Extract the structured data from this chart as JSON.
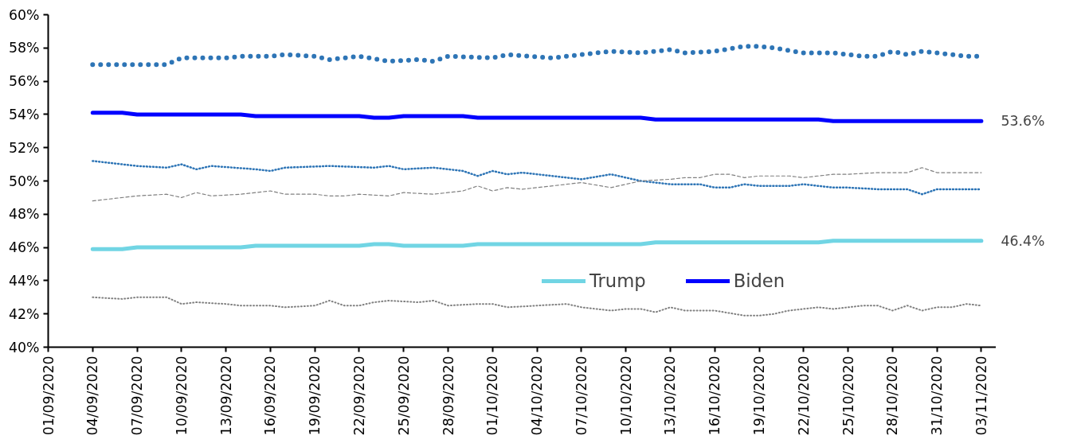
{
  "chart_data": {
    "type": "line",
    "legend": "right",
    "grid": false,
    "ylim": [
      40,
      60
    ],
    "yticks": [
      {
        "value": 40,
        "label": "40%"
      },
      {
        "value": 42,
        "label": "42%"
      },
      {
        "value": 44,
        "label": "44%"
      },
      {
        "value": 46,
        "label": "46%"
      },
      {
        "value": 48,
        "label": "48%"
      },
      {
        "value": 50,
        "label": "50%"
      },
      {
        "value": 52,
        "label": "52%"
      },
      {
        "value": 54,
        "label": "54%"
      },
      {
        "value": 56,
        "label": "56%"
      },
      {
        "value": 58,
        "label": "58%"
      },
      {
        "value": 60,
        "label": "60%"
      }
    ],
    "xlim": [
      "2020-09-01",
      "2020-11-04"
    ],
    "xticks": [
      {
        "value": "2020-09-01",
        "label": "01/09/2020"
      },
      {
        "value": "2020-09-04",
        "label": "04/09/2020"
      },
      {
        "value": "2020-09-07",
        "label": "07/09/2020"
      },
      {
        "value": "2020-09-10",
        "label": "10/09/2020"
      },
      {
        "value": "2020-09-13",
        "label": "13/09/2020"
      },
      {
        "value": "2020-09-16",
        "label": "16/09/2020"
      },
      {
        "value": "2020-09-19",
        "label": "19/09/2020"
      },
      {
        "value": "2020-09-22",
        "label": "22/09/2020"
      },
      {
        "value": "2020-09-25",
        "label": "25/09/2020"
      },
      {
        "value": "2020-09-28",
        "label": "28/09/2020"
      },
      {
        "value": "2020-10-01",
        "label": "01/10/2020"
      },
      {
        "value": "2020-10-04",
        "label": "04/10/2020"
      },
      {
        "value": "2020-10-07",
        "label": "07/10/2020"
      },
      {
        "value": "2020-10-10",
        "label": "10/10/2020"
      },
      {
        "value": "2020-10-13",
        "label": "13/10/2020"
      },
      {
        "value": "2020-10-16",
        "label": "16/10/2020"
      },
      {
        "value": "2020-10-19",
        "label": "19/10/2020"
      },
      {
        "value": "2020-10-22",
        "label": "22/10/2020"
      },
      {
        "value": "2020-10-25",
        "label": "25/10/2020"
      },
      {
        "value": "2020-10-28",
        "label": "28/10/2020"
      },
      {
        "value": "2020-10-31",
        "label": "31/10/2020"
      },
      {
        "value": "2020-11-03",
        "label": "03/11/2020"
      }
    ],
    "annotations": [
      {
        "text": "53.6%",
        "x": "2020-11-03",
        "y": 53.6
      },
      {
        "text": "46.4%",
        "x": "2020-11-03",
        "y": 46.4
      }
    ],
    "series": [
      {
        "color": "#2e75b6",
        "line_style": "dotted",
        "x": [
          "2020-09-04",
          "2020-09-07",
          "2020-09-09",
          "2020-09-10",
          "2020-09-13",
          "2020-09-14",
          "2020-09-16",
          "2020-09-17",
          "2020-09-19",
          "2020-09-20",
          "2020-09-22",
          "2020-09-24",
          "2020-09-26",
          "2020-09-27",
          "2020-09-28",
          "2020-10-01",
          "2020-10-02",
          "2020-10-05",
          "2020-10-07",
          "2020-10-09",
          "2020-10-11",
          "2020-10-13",
          "2020-10-14",
          "2020-10-16",
          "2020-10-18",
          "2020-10-19",
          "2020-10-20",
          "2020-10-22",
          "2020-10-24",
          "2020-10-26",
          "2020-10-27",
          "2020-10-28",
          "2020-10-29",
          "2020-10-30",
          "2020-10-31",
          "2020-11-02",
          "2020-11-03"
        ],
        "values": [
          57.0,
          57.0,
          57.0,
          57.4,
          57.4,
          57.5,
          57.5,
          57.6,
          57.5,
          57.3,
          57.5,
          57.2,
          57.3,
          57.2,
          57.5,
          57.4,
          57.6,
          57.4,
          57.6,
          57.8,
          57.7,
          57.9,
          57.7,
          57.8,
          58.1,
          58.1,
          58.0,
          57.7,
          57.7,
          57.5,
          57.5,
          57.8,
          57.6,
          57.8,
          57.7,
          57.5,
          57.5
        ]
      },
      {
        "name": "Biden",
        "color": "#0000ff",
        "line_style": "solid",
        "x": [
          "2020-09-04",
          "2020-09-06",
          "2020-09-07",
          "2020-09-14",
          "2020-09-15",
          "2020-09-22",
          "2020-09-23",
          "2020-09-24",
          "2020-09-25",
          "2020-09-29",
          "2020-09-30",
          "2020-10-11",
          "2020-10-12",
          "2020-10-23",
          "2020-10-24",
          "2020-11-03"
        ],
        "values": [
          54.1,
          54.1,
          54.0,
          54.0,
          53.9,
          53.9,
          53.8,
          53.8,
          53.9,
          53.9,
          53.8,
          53.8,
          53.7,
          53.7,
          53.6,
          53.6
        ]
      },
      {
        "color": "#2e75b6",
        "line_style": "dotted",
        "x": [
          "2020-09-04",
          "2020-09-07",
          "2020-09-09",
          "2020-09-10",
          "2020-09-11",
          "2020-09-12",
          "2020-09-15",
          "2020-09-16",
          "2020-09-17",
          "2020-09-20",
          "2020-09-23",
          "2020-09-24",
          "2020-09-25",
          "2020-09-27",
          "2020-09-29",
          "2020-09-30",
          "2020-10-01",
          "2020-10-02",
          "2020-10-03",
          "2020-10-07",
          "2020-10-09",
          "2020-10-11",
          "2020-10-13",
          "2020-10-15",
          "2020-10-16",
          "2020-10-17",
          "2020-10-18",
          "2020-10-19",
          "2020-10-21",
          "2020-10-22",
          "2020-10-24",
          "2020-10-25",
          "2020-10-27",
          "2020-10-29",
          "2020-10-30",
          "2020-10-31",
          "2020-11-03"
        ],
        "values": [
          51.2,
          50.9,
          50.8,
          51.0,
          50.7,
          50.9,
          50.7,
          50.6,
          50.8,
          50.9,
          50.8,
          50.9,
          50.7,
          50.8,
          50.6,
          50.3,
          50.6,
          50.4,
          50.5,
          50.1,
          50.4,
          50.0,
          49.8,
          49.8,
          49.6,
          49.6,
          49.8,
          49.7,
          49.7,
          49.8,
          49.6,
          49.6,
          49.5,
          49.5,
          49.2,
          49.5,
          49.5
        ]
      },
      {
        "color": "#808080",
        "line_style": "dashed",
        "x": [
          "2020-09-04",
          "2020-09-07",
          "2020-09-09",
          "2020-09-10",
          "2020-09-11",
          "2020-09-12",
          "2020-09-14",
          "2020-09-16",
          "2020-09-17",
          "2020-09-19",
          "2020-09-20",
          "2020-09-21",
          "2020-09-22",
          "2020-09-24",
          "2020-09-25",
          "2020-09-27",
          "2020-09-29",
          "2020-09-30",
          "2020-10-01",
          "2020-10-02",
          "2020-10-03",
          "2020-10-07",
          "2020-10-09",
          "2020-10-11",
          "2020-10-13",
          "2020-10-14",
          "2020-10-15",
          "2020-10-16",
          "2020-10-17",
          "2020-10-18",
          "2020-10-19",
          "2020-10-21",
          "2020-10-22",
          "2020-10-24",
          "2020-10-25",
          "2020-10-27",
          "2020-10-29",
          "2020-10-30",
          "2020-10-31",
          "2020-11-03"
        ],
        "values": [
          48.8,
          49.1,
          49.2,
          49.0,
          49.3,
          49.1,
          49.2,
          49.4,
          49.2,
          49.2,
          49.1,
          49.1,
          49.2,
          49.1,
          49.3,
          49.2,
          49.4,
          49.7,
          49.4,
          49.6,
          49.5,
          49.9,
          49.6,
          50.0,
          50.1,
          50.2,
          50.2,
          50.4,
          50.4,
          50.2,
          50.3,
          50.3,
          50.2,
          50.4,
          50.4,
          50.5,
          50.5,
          50.8,
          50.5,
          50.5
        ]
      },
      {
        "name": "Trump",
        "color": "#71d5e4",
        "line_style": "solid",
        "x": [
          "2020-09-04",
          "2020-09-06",
          "2020-09-07",
          "2020-09-14",
          "2020-09-15",
          "2020-09-22",
          "2020-09-23",
          "2020-09-24",
          "2020-09-25",
          "2020-09-29",
          "2020-09-30",
          "2020-10-11",
          "2020-10-12",
          "2020-10-23",
          "2020-10-24",
          "2020-11-03"
        ],
        "values": [
          45.9,
          45.9,
          46.0,
          46.0,
          46.1,
          46.1,
          46.2,
          46.2,
          46.1,
          46.1,
          46.2,
          46.2,
          46.3,
          46.3,
          46.4,
          46.4
        ]
      },
      {
        "color": "#808080",
        "line_style": "dotted",
        "x": [
          "2020-09-04",
          "2020-09-06",
          "2020-09-07",
          "2020-09-09",
          "2020-09-10",
          "2020-09-11",
          "2020-09-13",
          "2020-09-14",
          "2020-09-16",
          "2020-09-17",
          "2020-09-19",
          "2020-09-20",
          "2020-09-21",
          "2020-09-22",
          "2020-09-23",
          "2020-09-24",
          "2020-09-26",
          "2020-09-27",
          "2020-09-28",
          "2020-09-30",
          "2020-10-01",
          "2020-10-02",
          "2020-10-04",
          "2020-10-06",
          "2020-10-07",
          "2020-10-09",
          "2020-10-10",
          "2020-10-11",
          "2020-10-12",
          "2020-10-13",
          "2020-10-14",
          "2020-10-16",
          "2020-10-18",
          "2020-10-19",
          "2020-10-20",
          "2020-10-21",
          "2020-10-23",
          "2020-10-24",
          "2020-10-25",
          "2020-10-26",
          "2020-10-27",
          "2020-10-28",
          "2020-10-29",
          "2020-10-30",
          "2020-10-31",
          "2020-11-01",
          "2020-11-02",
          "2020-11-03"
        ],
        "values": [
          43.0,
          42.9,
          43.0,
          43.0,
          42.6,
          42.7,
          42.6,
          42.5,
          42.5,
          42.4,
          42.5,
          42.8,
          42.5,
          42.5,
          42.7,
          42.8,
          42.7,
          42.8,
          42.5,
          42.6,
          42.6,
          42.4,
          42.5,
          42.6,
          42.4,
          42.2,
          42.3,
          42.3,
          42.1,
          42.4,
          42.2,
          42.2,
          41.9,
          41.9,
          42.0,
          42.2,
          42.4,
          42.3,
          42.4,
          42.5,
          42.5,
          42.2,
          42.5,
          42.2,
          42.4,
          42.4,
          42.6,
          42.5
        ]
      }
    ]
  }
}
